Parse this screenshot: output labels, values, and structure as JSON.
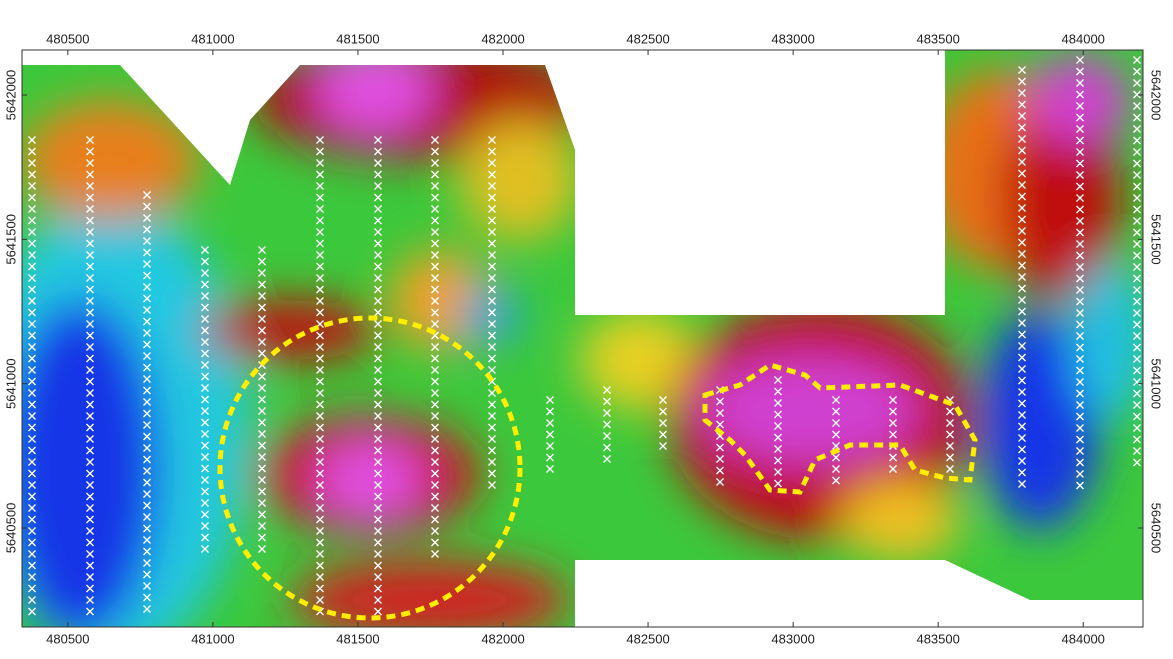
{
  "map": {
    "xlim": [
      480342,
      484206
    ],
    "xticks": [
      480500,
      481000,
      481500,
      482000,
      482500,
      483000,
      483500,
      484000
    ],
    "ylim": [
      5640157,
      5642156
    ],
    "yticks": [
      5640500,
      5641000,
      5641500,
      5642000
    ]
  }
}
